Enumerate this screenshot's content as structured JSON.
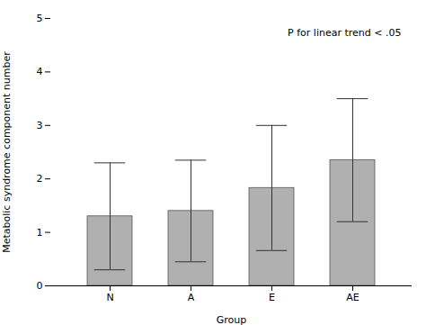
{
  "chart_data": {
    "type": "bar",
    "categories": [
      "N",
      "A",
      "E",
      "AE"
    ],
    "values": [
      1.3,
      1.4,
      1.83,
      2.35
    ],
    "errors": [
      1.0,
      0.95,
      1.17,
      1.15
    ],
    "color": "#b0b0b0",
    "xlabel": "Group",
    "ylabel": "Metabolic syndrome component number",
    "annotation": "P for linear trend < .05",
    "ylim": [
      0,
      5
    ],
    "yticks": [
      0,
      1,
      2,
      3,
      4,
      5
    ]
  }
}
